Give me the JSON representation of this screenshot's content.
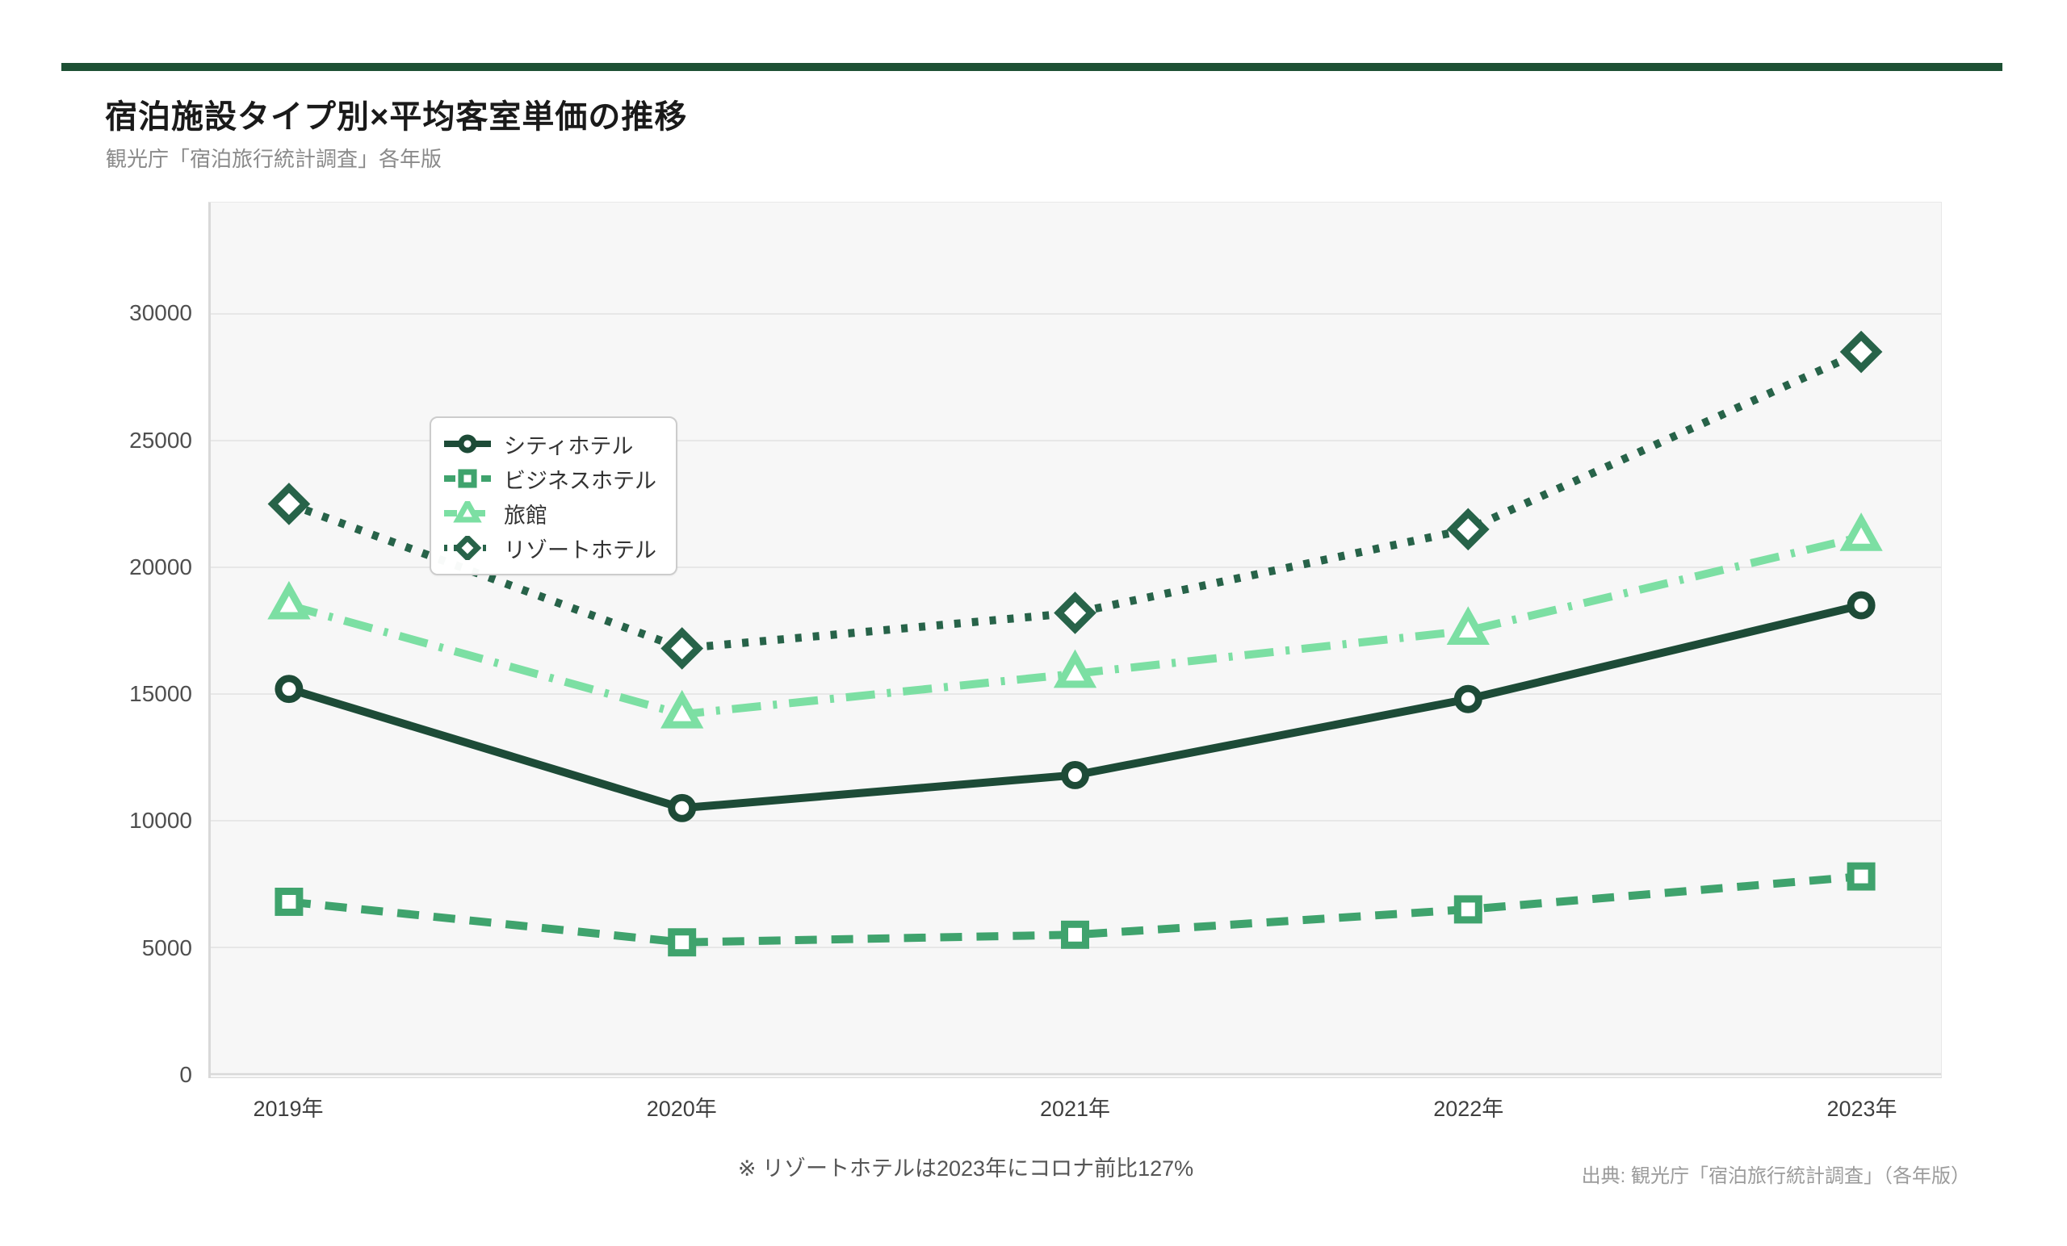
{
  "page": {
    "accent_bar_color": "#1d5034",
    "background": "#ffffff"
  },
  "header": {
    "title": "宿泊施設タイプ別×平均客室単価の推移",
    "subtitle": "観光庁「宿泊旅行統計調査」各年版"
  },
  "footer": {
    "note": "※ リゾートホテルは2023年にコロナ前比127%",
    "source": "出典: 観光庁「宿泊旅行統計調査」（各年版）"
  },
  "chart_data": {
    "type": "line",
    "title": "宿泊施設タイプ別×平均客室単価の推移",
    "categories": [
      "2019年",
      "2020年",
      "2021年",
      "2022年",
      "2023年"
    ],
    "series": [
      {
        "name": "シティホテル",
        "values": [
          15200,
          10500,
          11800,
          14800,
          18500
        ],
        "color": "#1d4b37",
        "line_style": "solid",
        "marker": "circle"
      },
      {
        "name": "ビジネスホテル",
        "values": [
          6800,
          5200,
          5500,
          6500,
          7800
        ],
        "color": "#3fa36d",
        "line_style": "dashed",
        "marker": "square"
      },
      {
        "name": "旅館",
        "values": [
          18500,
          14200,
          15800,
          17500,
          21200
        ],
        "color": "#7cdfa3",
        "line_style": "dash-dot",
        "marker": "triangle"
      },
      {
        "name": "リゾートホテル",
        "values": [
          22500,
          16800,
          18200,
          21500,
          28500
        ],
        "color": "#276349",
        "line_style": "dotted",
        "marker": "diamond"
      }
    ],
    "xlabel": "",
    "ylabel": "",
    "yticks": [
      0,
      5000,
      10000,
      15000,
      20000,
      25000,
      30000
    ],
    "ylim": [
      0,
      34400
    ],
    "grid": true,
    "legend_position": "top-left",
    "plot_background": "#f7f7f7",
    "gridline_color": "#e7e7e7",
    "axis_line_color": "#d9d9d9"
  }
}
